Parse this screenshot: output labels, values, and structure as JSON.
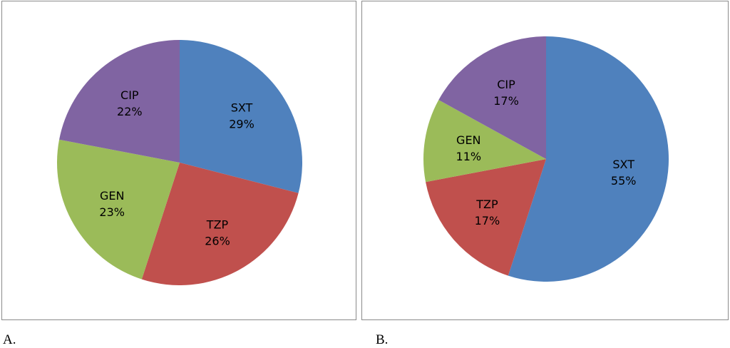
{
  "chart_data": [
    {
      "type": "pie",
      "panel_label": "A.",
      "slices": [
        {
          "label": "SXT",
          "value": 29,
          "display": "29%",
          "color": "#4F81BD"
        },
        {
          "label": "TZP",
          "value": 26,
          "display": "26%",
          "color": "#C0504D"
        },
        {
          "label": "GEN",
          "value": 23,
          "display": "23%",
          "color": "#9BBB59"
        },
        {
          "label": "CIP",
          "value": 22,
          "display": "22%",
          "color": "#8064A2"
        }
      ]
    },
    {
      "type": "pie",
      "panel_label": "B.",
      "slices": [
        {
          "label": "SXT",
          "value": 55,
          "display": "55%",
          "color": "#4F81BD"
        },
        {
          "label": "TZP",
          "value": 17,
          "display": "17%",
          "color": "#C0504D"
        },
        {
          "label": "GEN",
          "value": 11,
          "display": "11%",
          "color": "#9BBB59"
        },
        {
          "label": "CIP",
          "value": 17,
          "display": "17%",
          "color": "#8064A2"
        }
      ]
    }
  ]
}
